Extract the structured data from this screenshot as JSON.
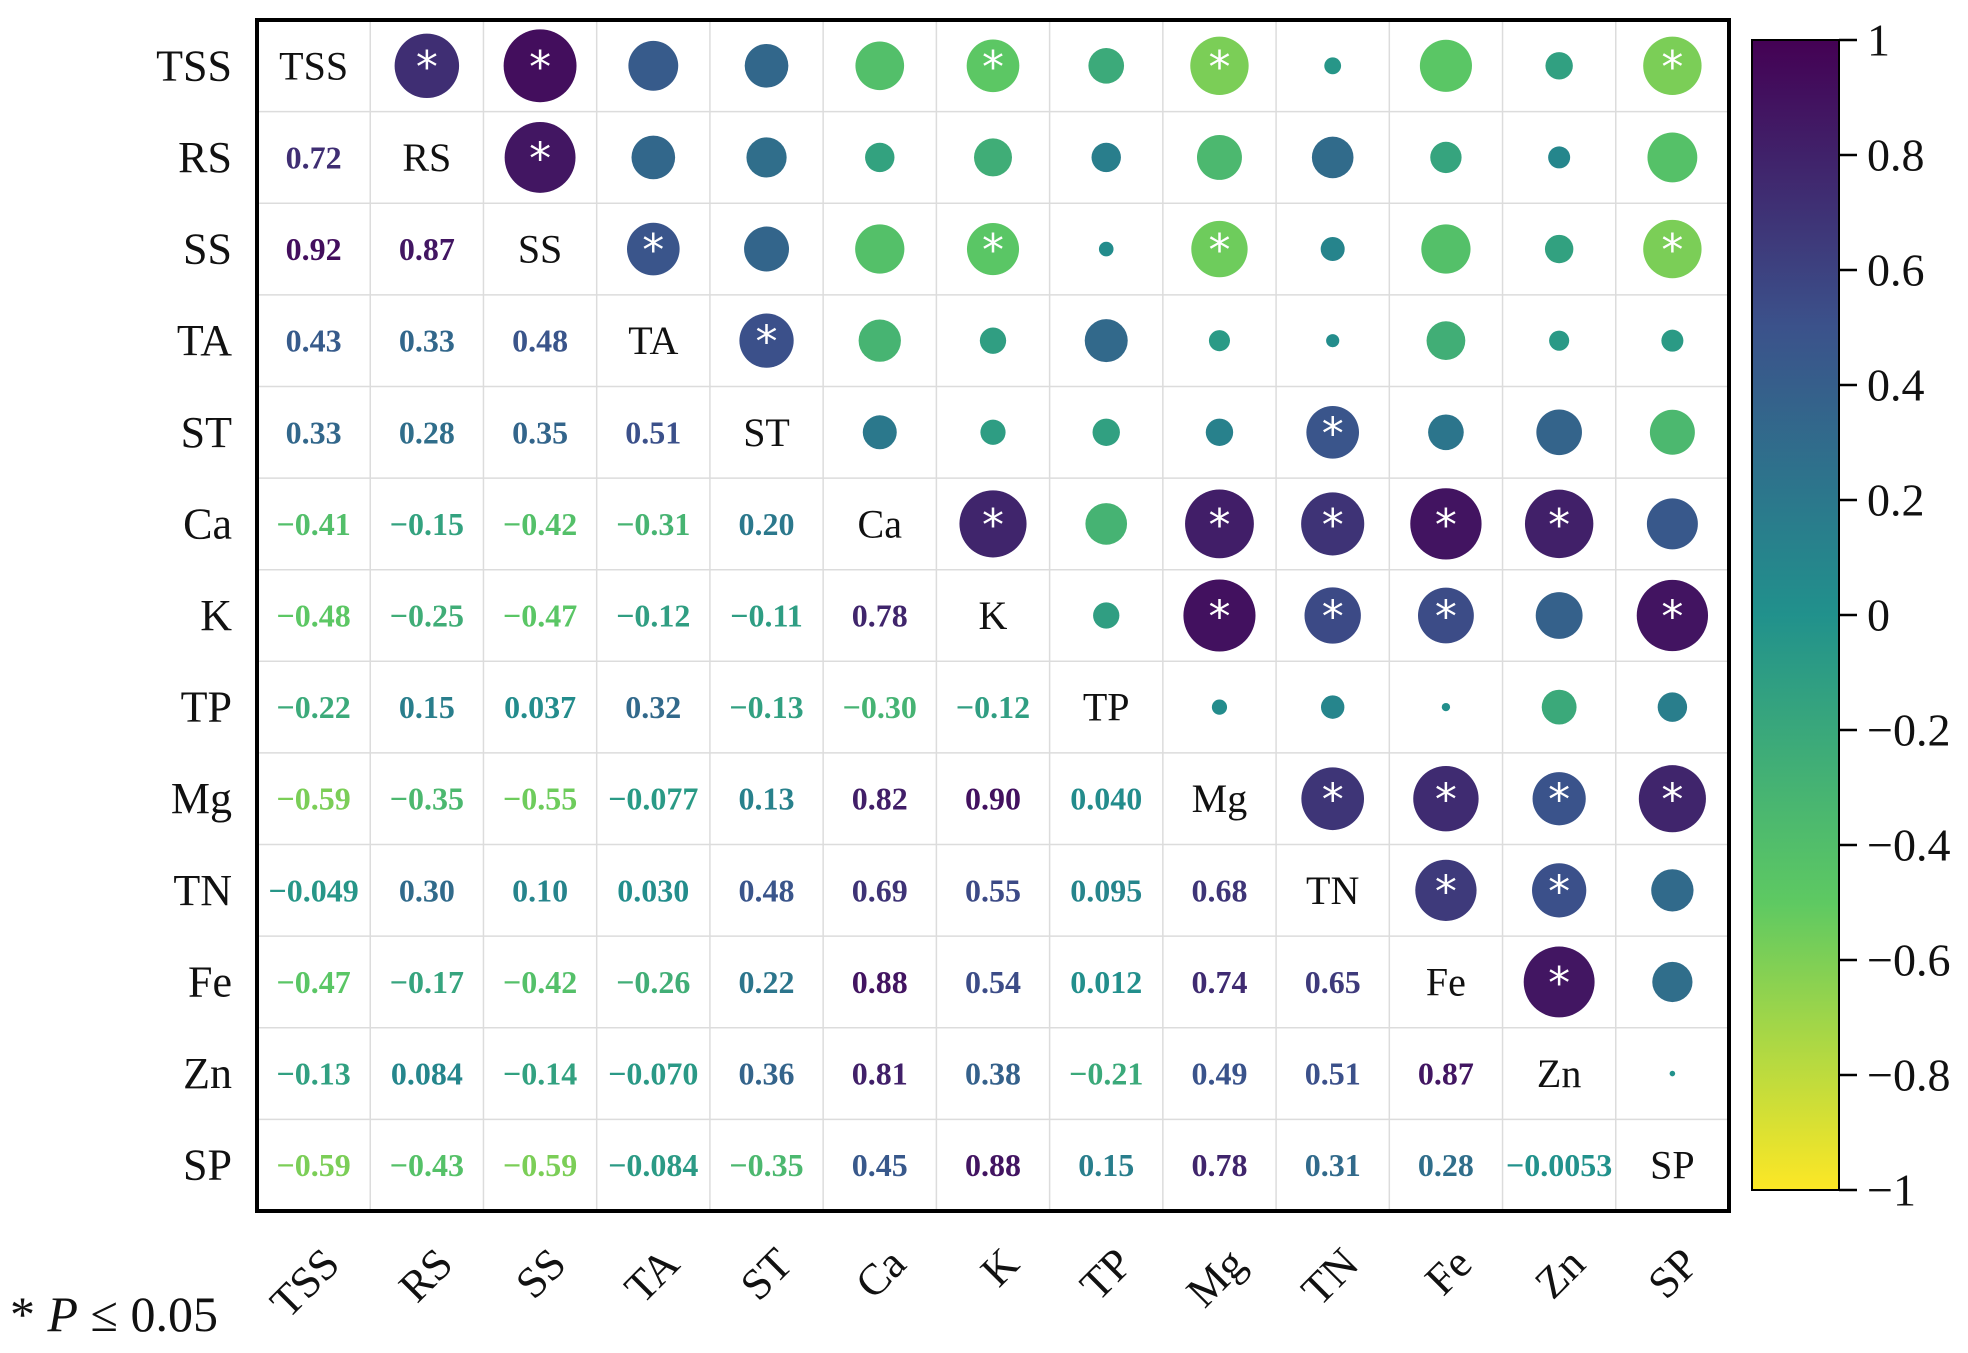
{
  "chart_data": {
    "type": "heatmap",
    "subtype": "correlation-matrix",
    "variables": [
      "TSS",
      "RS",
      "SS",
      "TA",
      "ST",
      "Ca",
      "K",
      "TP",
      "Mg",
      "TN",
      "Fe",
      "Zn",
      "SP"
    ],
    "lower_labels": [
      [],
      [
        "0.72"
      ],
      [
        "0.92",
        "0.87"
      ],
      [
        "0.43",
        "0.33",
        "0.48"
      ],
      [
        "0.33",
        "0.28",
        "0.35",
        "0.51"
      ],
      [
        "−0.41",
        "−0.15",
        "−0.42",
        "−0.31",
        "0.20"
      ],
      [
        "−0.48",
        "−0.25",
        "−0.47",
        "−0.12",
        "−0.11",
        "0.78"
      ],
      [
        "−0.22",
        "0.15",
        "0.037",
        "0.32",
        "−0.13",
        "−0.30",
        "−0.12"
      ],
      [
        "−0.59",
        "−0.35",
        "−0.55",
        "−0.077",
        "0.13",
        "0.82",
        "0.90",
        "0.040"
      ],
      [
        "−0.049",
        "0.30",
        "0.10",
        "0.030",
        "0.48",
        "0.69",
        "0.55",
        "0.095",
        "0.68"
      ],
      [
        "−0.47",
        "−0.17",
        "−0.42",
        "−0.26",
        "0.22",
        "0.88",
        "0.54",
        "0.012",
        "0.74",
        "0.65"
      ],
      [
        "−0.13",
        "0.084",
        "−0.14",
        "−0.070",
        "0.36",
        "0.81",
        "0.38",
        "−0.21",
        "0.49",
        "0.51",
        "0.87"
      ],
      [
        "−0.59",
        "−0.43",
        "−0.59",
        "−0.084",
        "−0.35",
        "0.45",
        "0.88",
        "0.15",
        "0.78",
        "0.31",
        "0.28",
        "−0.0053"
      ]
    ],
    "significance_marker": "*",
    "significant_pairs": [
      [
        0,
        1
      ],
      [
        0,
        2
      ],
      [
        0,
        6
      ],
      [
        0,
        8
      ],
      [
        0,
        12
      ],
      [
        1,
        2
      ],
      [
        2,
        3
      ],
      [
        2,
        6
      ],
      [
        2,
        8
      ],
      [
        2,
        12
      ],
      [
        3,
        4
      ],
      [
        4,
        9
      ],
      [
        5,
        6
      ],
      [
        5,
        8
      ],
      [
        5,
        9
      ],
      [
        5,
        10
      ],
      [
        5,
        11
      ],
      [
        6,
        8
      ],
      [
        6,
        9
      ],
      [
        6,
        10
      ],
      [
        6,
        12
      ],
      [
        8,
        9
      ],
      [
        8,
        10
      ],
      [
        8,
        11
      ],
      [
        8,
        12
      ],
      [
        9,
        10
      ],
      [
        9,
        11
      ],
      [
        10,
        11
      ]
    ],
    "colorbar": {
      "range": [
        -1,
        1
      ],
      "ticks": [
        "1",
        "0.8",
        "0.6",
        "0.4",
        "0.2",
        "0",
        "−0.2",
        "−0.4",
        "−0.6",
        "−0.8",
        "−1"
      ],
      "tick_values": [
        1,
        0.8,
        0.6,
        0.4,
        0.2,
        0,
        -0.2,
        -0.4,
        -0.6,
        -0.8,
        -1
      ],
      "colormap": "viridis",
      "stops": [
        "#fde725",
        "#5ec962",
        "#21918c",
        "#3b528b",
        "#440154"
      ]
    }
  },
  "footnote": {
    "star": "*",
    "italic": "P",
    "rest": "≤ 0.05"
  }
}
